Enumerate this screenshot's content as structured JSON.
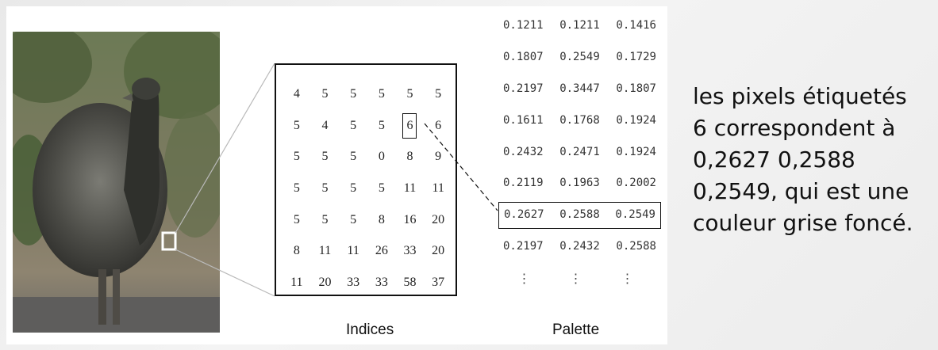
{
  "indices": {
    "caption": "Indices",
    "rows": [
      [
        "4",
        "5",
        "5",
        "5",
        "5",
        "5"
      ],
      [
        "5",
        "4",
        "5",
        "5",
        "6",
        "6"
      ],
      [
        "5",
        "5",
        "5",
        "0",
        "8",
        "9"
      ],
      [
        "5",
        "5",
        "5",
        "5",
        "11",
        "11"
      ],
      [
        "5",
        "5",
        "5",
        "8",
        "16",
        "20"
      ],
      [
        "8",
        "11",
        "11",
        "26",
        "33",
        "20"
      ],
      [
        "11",
        "20",
        "33",
        "33",
        "58",
        "37"
      ]
    ],
    "highlighted_cell": {
      "row": 1,
      "col": 4
    }
  },
  "palette": {
    "caption": "Palette",
    "rows": [
      [
        "0.1211",
        "0.1211",
        "0.1416"
      ],
      [
        "0.1807",
        "0.2549",
        "0.1729"
      ],
      [
        "0.2197",
        "0.3447",
        "0.1807"
      ],
      [
        "0.1611",
        "0.1768",
        "0.1924"
      ],
      [
        "0.2432",
        "0.2471",
        "0.1924"
      ],
      [
        "0.2119",
        "0.1963",
        "0.2002"
      ],
      [
        "0.2627",
        "0.2588",
        "0.2549"
      ],
      [
        "0.2197",
        "0.2432",
        "0.2588"
      ]
    ],
    "highlighted_row": 6,
    "ellipsis": [
      "⋮",
      "⋮",
      "⋮"
    ]
  },
  "explanation": "les pixels étiquetés\n6 correspondent à\n0,2627 0,2588\n0,2549, qui est une\ncouleur grise foncé.",
  "colors": {
    "highlight_color": "#424240",
    "frame": "#111111"
  }
}
